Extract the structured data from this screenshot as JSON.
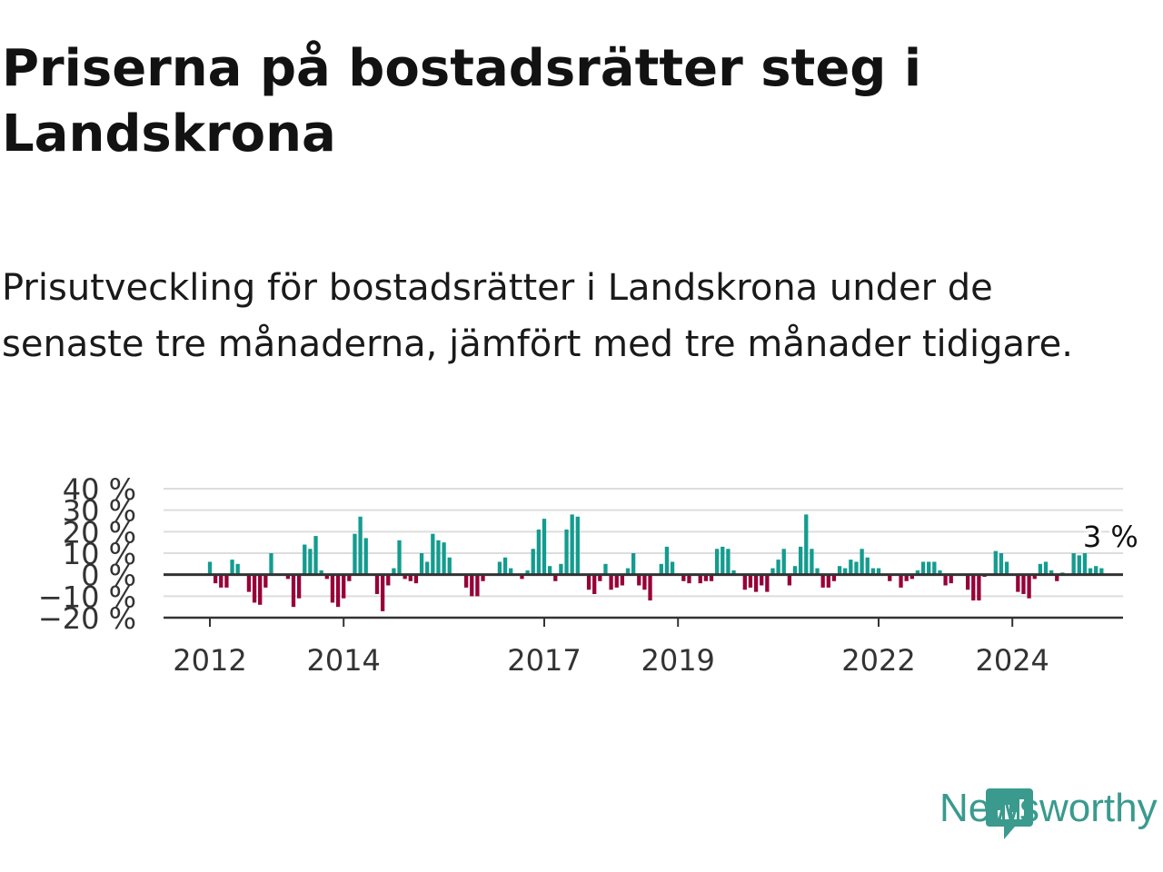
{
  "title": "Priserna på bostadsrätter steg i Landskrona",
  "subtitle": "Prisutveckling för bostadsrätter i Landskrona under de senaste tre månaderna, jämfört med tre månader tidigare.",
  "brand": {
    "name": "Newsworthy",
    "color": "#3a9a8e",
    "icon": "newsworthy-chart-icon"
  },
  "colors": {
    "positive": "#139c8f",
    "negative": "#970038",
    "grid": "#dddddd",
    "axis": "#333333"
  },
  "chart_data": {
    "type": "bar",
    "title": "",
    "xlabel": "",
    "ylabel": "",
    "ylim": [
      -20,
      40
    ],
    "y_ticks": [
      {
        "value": 40,
        "label": "40 %"
      },
      {
        "value": 30,
        "label": "30 %"
      },
      {
        "value": 20,
        "label": "20 %"
      },
      {
        "value": 10,
        "label": "10 %"
      },
      {
        "value": 0,
        "label": "0 %"
      },
      {
        "value": -10,
        "label": "−10 %"
      },
      {
        "value": -20,
        "label": "−20 %"
      }
    ],
    "x_ticks": [
      {
        "value": 2012,
        "label": "2012"
      },
      {
        "value": 2014,
        "label": "2014"
      },
      {
        "value": 2017,
        "label": "2017"
      },
      {
        "value": 2019,
        "label": "2019"
      },
      {
        "value": 2022,
        "label": "2022"
      },
      {
        "value": 2024,
        "label": "2024"
      }
    ],
    "x_start": 2012,
    "x_step_months": 1,
    "grid": true,
    "annotation": {
      "text": "3 %",
      "value": 3
    },
    "values": [
      6,
      -4,
      -6,
      -6,
      7,
      5,
      0,
      -8,
      -13,
      -14,
      -6,
      10,
      0,
      0,
      -2,
      -15,
      -11,
      14,
      12,
      18,
      2,
      -2,
      -13,
      -15,
      -11,
      -3,
      19,
      27,
      17,
      0,
      -9,
      -17,
      -5,
      3,
      16,
      -2,
      -3,
      -4,
      10,
      6,
      19,
      16,
      15,
      8,
      0,
      0,
      -6,
      -10,
      -10,
      -3,
      0,
      0,
      6,
      8,
      3,
      0,
      -2,
      2,
      12,
      21,
      26,
      4,
      -3,
      5,
      21,
      28,
      27,
      0,
      -7,
      -9,
      -3,
      5,
      -7,
      -6,
      -5,
      3,
      10,
      -5,
      -7,
      -12,
      0,
      5,
      13,
      6,
      0,
      -3,
      -4,
      0,
      -4,
      -3,
      -3,
      12,
      13,
      12,
      2,
      0,
      -7,
      -6,
      -8,
      -5,
      -8,
      3,
      7,
      12,
      -5,
      4,
      13,
      28,
      12,
      3,
      -6,
      -6,
      -3,
      4,
      3,
      7,
      6,
      12,
      8,
      3,
      3,
      0,
      -3,
      0,
      -6,
      -3,
      -2,
      2,
      6,
      6,
      6,
      2,
      -5,
      -4,
      0,
      0,
      -7,
      -12,
      -12,
      -1,
      0,
      11,
      10,
      6,
      0,
      -8,
      -9,
      -11,
      -2,
      5,
      6,
      2,
      -3,
      1,
      0,
      10,
      9,
      10,
      3,
      4,
      3
    ]
  }
}
